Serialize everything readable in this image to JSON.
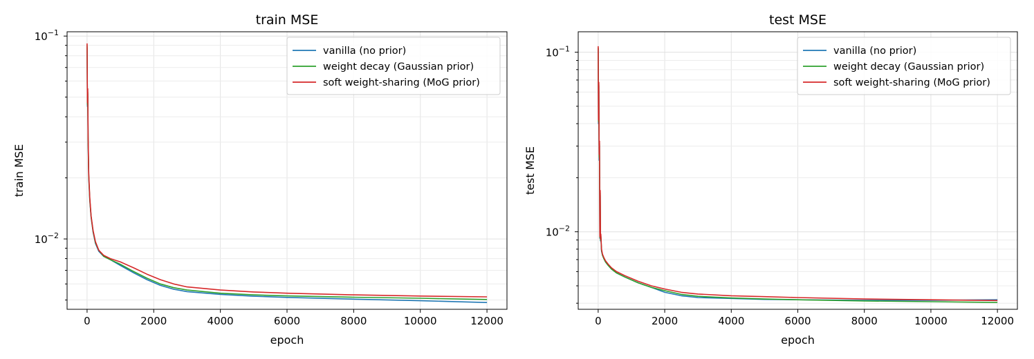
{
  "chart_data": [
    {
      "type": "line",
      "title": "train MSE",
      "xlabel": "epoch",
      "ylabel": "train MSE",
      "xlim": [
        -600,
        12600
      ],
      "ylim": [
        0.0045,
        0.105
      ],
      "yscale": "log",
      "x_ticks": [
        0,
        2000,
        4000,
        6000,
        8000,
        10000,
        12000
      ],
      "x_tick_labels": [
        "0",
        "2000",
        "4000",
        "6000",
        "8000",
        "10000",
        "12000"
      ],
      "y_major_ticks": [
        0.01,
        0.1
      ],
      "y_major_labels": [
        {
          "base": "10",
          "exp": "−2"
        },
        {
          "base": "10",
          "exp": "−1"
        }
      ],
      "grid": true,
      "legend_position": "upper right",
      "series": [
        {
          "name": "vanilla (no prior)",
          "color": "#1f77b4",
          "x": [
            0,
            10,
            20,
            30,
            50,
            80,
            120,
            180,
            250,
            350,
            500,
            700,
            1000,
            1400,
            1800,
            2200,
            2600,
            3000,
            4000,
            5000,
            6000,
            8000,
            10000,
            12000
          ],
          "y": [
            0.088,
            0.045,
            0.052,
            0.03,
            0.02,
            0.0155,
            0.0128,
            0.0108,
            0.0095,
            0.0087,
            0.0082,
            0.0079,
            0.0074,
            0.0068,
            0.0063,
            0.0059,
            0.00565,
            0.0055,
            0.00533,
            0.00522,
            0.00515,
            0.00505,
            0.00496,
            0.00486
          ]
        },
        {
          "name": "weight decay (Gaussian prior)",
          "color": "#2ca02c",
          "x": [
            0,
            10,
            20,
            30,
            50,
            80,
            120,
            180,
            250,
            350,
            500,
            700,
            1000,
            1400,
            1800,
            2200,
            2600,
            3000,
            4000,
            5000,
            6000,
            8000,
            10000,
            12000
          ],
          "y": [
            0.09,
            0.046,
            0.053,
            0.031,
            0.0205,
            0.0157,
            0.0129,
            0.0109,
            0.0096,
            0.0088,
            0.0082,
            0.0079,
            0.0075,
            0.0069,
            0.0064,
            0.006,
            0.00575,
            0.0056,
            0.0054,
            0.0053,
            0.00524,
            0.00516,
            0.0051,
            0.00503
          ]
        },
        {
          "name": "soft weight-sharing (MoG prior)",
          "color": "#d62728",
          "x": [
            0,
            10,
            20,
            30,
            50,
            80,
            120,
            180,
            250,
            350,
            500,
            700,
            1000,
            1400,
            1800,
            2200,
            2600,
            3000,
            4000,
            5000,
            6000,
            8000,
            10000,
            12000
          ],
          "y": [
            0.092,
            0.047,
            0.055,
            0.032,
            0.021,
            0.016,
            0.013,
            0.011,
            0.0097,
            0.0088,
            0.0083,
            0.008,
            0.0077,
            0.0072,
            0.0067,
            0.0063,
            0.006,
            0.0058,
            0.0056,
            0.00548,
            0.0054,
            0.0053,
            0.00523,
            0.00518
          ]
        }
      ]
    },
    {
      "type": "line",
      "title": "test MSE",
      "xlabel": "epoch",
      "ylabel": "test MSE",
      "xlim": [
        -600,
        12600
      ],
      "ylim": [
        0.0037,
        0.13
      ],
      "yscale": "log",
      "x_ticks": [
        0,
        2000,
        4000,
        6000,
        8000,
        10000,
        12000
      ],
      "x_tick_labels": [
        "0",
        "2000",
        "4000",
        "6000",
        "8000",
        "10000",
        "12000"
      ],
      "y_major_ticks": [
        0.01,
        0.1
      ],
      "y_major_labels": [
        {
          "base": "10",
          "exp": "−2"
        },
        {
          "base": "10",
          "exp": "−1"
        }
      ],
      "grid": true,
      "legend_position": "upper right",
      "series": [
        {
          "name": "vanilla (no prior)",
          "color": "#1f77b4",
          "x": [
            0,
            10,
            20,
            30,
            40,
            50,
            60,
            70,
            80,
            100,
            130,
            170,
            220,
            300,
            400,
            550,
            800,
            1200,
            1600,
            2000,
            2500,
            3000,
            4000,
            5000,
            6000,
            8000,
            10000,
            12000
          ],
          "y": [
            0.105,
            0.04,
            0.065,
            0.025,
            0.03,
            0.0092,
            0.016,
            0.0089,
            0.0095,
            0.0078,
            0.0074,
            0.0071,
            0.0068,
            0.0065,
            0.0062,
            0.0059,
            0.0056,
            0.0052,
            0.0049,
            0.0046,
            0.0044,
            0.0043,
            0.00425,
            0.0042,
            0.00418,
            0.00415,
            0.00415,
            0.00418
          ]
        },
        {
          "name": "weight decay (Gaussian prior)",
          "color": "#2ca02c",
          "x": [
            0,
            10,
            20,
            30,
            40,
            50,
            60,
            70,
            80,
            100,
            130,
            170,
            220,
            300,
            400,
            550,
            800,
            1200,
            1600,
            2000,
            2500,
            3000,
            4000,
            5000,
            6000,
            8000,
            10000,
            12000
          ],
          "y": [
            0.106,
            0.041,
            0.066,
            0.026,
            0.031,
            0.0093,
            0.0165,
            0.009,
            0.0096,
            0.0079,
            0.0074,
            0.0071,
            0.0068,
            0.0065,
            0.0062,
            0.0059,
            0.0056,
            0.0052,
            0.0049,
            0.0047,
            0.00448,
            0.00437,
            0.00428,
            0.00422,
            0.00418,
            0.00412,
            0.00408,
            0.00404
          ]
        },
        {
          "name": "soft weight-sharing (MoG prior)",
          "color": "#d62728",
          "x": [
            0,
            10,
            20,
            30,
            40,
            50,
            60,
            70,
            80,
            100,
            130,
            170,
            220,
            300,
            400,
            550,
            800,
            1200,
            1600,
            2000,
            2500,
            3000,
            4000,
            5000,
            6000,
            8000,
            10000,
            12000
          ],
          "y": [
            0.108,
            0.042,
            0.068,
            0.027,
            0.032,
            0.0094,
            0.017,
            0.0091,
            0.0097,
            0.008,
            0.0075,
            0.0072,
            0.0069,
            0.0066,
            0.0063,
            0.006,
            0.0057,
            0.0053,
            0.005,
            0.0048,
            0.0046,
            0.0045,
            0.0044,
            0.00435,
            0.0043,
            0.00422,
            0.00418,
            0.00414
          ]
        }
      ]
    }
  ]
}
